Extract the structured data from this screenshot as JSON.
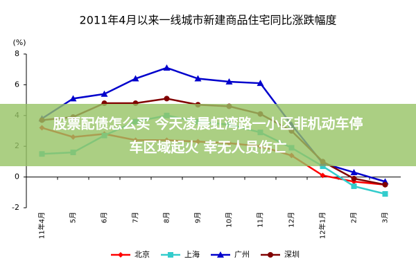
{
  "chart_data": {
    "type": "line",
    "title": "2011年4月以来一线城市新建商品住宅同比涨跌幅度",
    "y_unit": "(%)",
    "categories": [
      "11年4月",
      "5月",
      "6月",
      "7月",
      "8月",
      "9月",
      "10月",
      "11月",
      "12月",
      "12年1月",
      "2月",
      "3月"
    ],
    "series": [
      {
        "name": "北京",
        "color": "#ff0000",
        "marker": "diamond",
        "values": [
          3.2,
          2.6,
          2.8,
          2.4,
          2.4,
          2.3,
          2.2,
          2.0,
          1.4,
          0.1,
          -0.3,
          -0.5
        ]
      },
      {
        "name": "上海",
        "color": "#33cccc",
        "marker": "square",
        "values": [
          1.5,
          1.6,
          2.7,
          3.6,
          4.0,
          3.6,
          3.4,
          2.9,
          1.9,
          0.7,
          -0.6,
          -1.1
        ]
      },
      {
        "name": "广州",
        "color": "#0000cc",
        "marker": "triangle",
        "values": [
          3.8,
          5.1,
          5.4,
          6.4,
          7.1,
          6.4,
          6.2,
          6.1,
          3.4,
          0.9,
          0.3,
          -0.3
        ]
      },
      {
        "name": "深圳",
        "color": "#800000",
        "marker": "circle",
        "values": [
          3.7,
          3.9,
          4.8,
          4.8,
          5.1,
          4.7,
          4.6,
          4.1,
          3.0,
          1.0,
          -0.1,
          -0.5
        ]
      }
    ],
    "ylim": [
      -2,
      8
    ],
    "yticks": [
      -2,
      0,
      2,
      4,
      6,
      8
    ],
    "grid": false,
    "legend": "bottom"
  },
  "overlay": {
    "lines": [
      "股票配债怎么买 今天凌晨虹湾路一小区非机动车停",
      "车区域起火 幸无人员伤亡"
    ]
  }
}
